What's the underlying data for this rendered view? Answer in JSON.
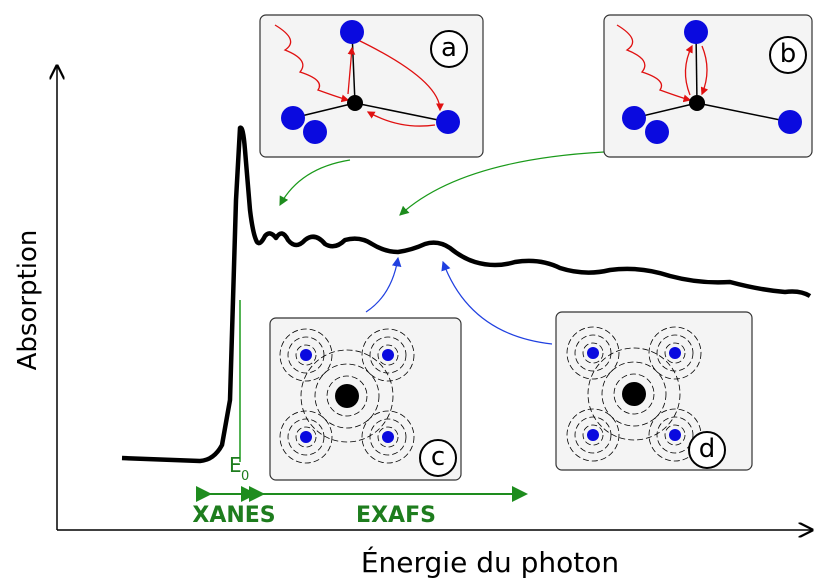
{
  "axes": {
    "y_label": "Absorption",
    "x_label": "Énergie du photon"
  },
  "edge": {
    "label": "E",
    "subscript": "0"
  },
  "regions": [
    {
      "label": "XANES"
    },
    {
      "label": "EXAFS"
    }
  ],
  "panels": [
    {
      "label": "a"
    },
    {
      "label": "b"
    },
    {
      "label": "c"
    },
    {
      "label": "d"
    }
  ]
}
